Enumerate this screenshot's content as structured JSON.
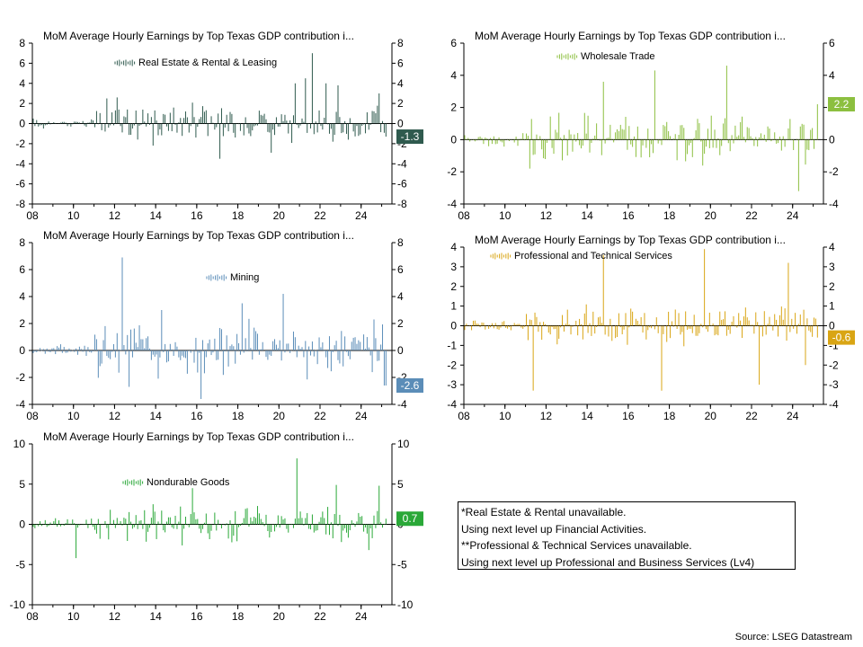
{
  "chart_data": [
    {
      "type": "bar",
      "title": "MoM Average Hourly Earnings by Top Texas GDP contribution i...",
      "series": [
        {
          "name": "Real Estate & Rental & Leasing",
          "color": "#2f5a4e",
          "latest": -1.3,
          "peaks": [
            [
              2011.6,
              2.5
            ],
            [
              2012.1,
              2.6
            ],
            [
              2012.5,
              -2.7
            ],
            [
              2017.1,
              -3.5
            ],
            [
              2019.6,
              -2.9
            ],
            [
              2020.8,
              4.0
            ],
            [
              2021.3,
              4.5
            ],
            [
              2021.6,
              7.0
            ],
            [
              2022.0,
              -6.3
            ],
            [
              2022.3,
              4.0
            ],
            [
              2022.9,
              3.8
            ],
            [
              2024.5,
              -3.3
            ],
            [
              2024.9,
              3.0
            ]
          ]
        }
      ],
      "xlim": [
        2008,
        2025.5
      ],
      "xticks": [
        "08",
        "10",
        "12",
        "14",
        "16",
        "18",
        "20",
        "22",
        "24"
      ],
      "ylim": [
        -8,
        8
      ],
      "yticks": [
        8,
        6,
        4,
        2,
        0,
        -2,
        -4,
        -6,
        -8
      ]
    },
    {
      "type": "bar",
      "title": "MoM Average Hourly Earnings by Top Texas GDP contribution i...",
      "series": [
        {
          "name": "Wholesale Trade",
          "color": "#8cbf3f",
          "latest": 2.2,
          "peaks": [
            [
              2011.5,
              4.3
            ],
            [
              2011.2,
              -1.8
            ],
            [
              2013.0,
              -3.4
            ],
            [
              2013.5,
              3.7
            ],
            [
              2014.8,
              3.6
            ],
            [
              2016.5,
              -3.0
            ],
            [
              2017.3,
              4.3
            ],
            [
              2018.5,
              3.8
            ],
            [
              2020.0,
              -4.0
            ],
            [
              2020.8,
              4.6
            ],
            [
              2023.5,
              3.5
            ],
            [
              2024.3,
              -3.2
            ],
            [
              2025.0,
              -1.5
            ]
          ]
        }
      ],
      "xlim": [
        2008,
        2025.5
      ],
      "xticks": [
        "08",
        "10",
        "12",
        "14",
        "16",
        "18",
        "20",
        "22",
        "24"
      ],
      "ylim": [
        -4,
        6
      ],
      "yticks": [
        6,
        4,
        2,
        0,
        -2,
        -4
      ]
    },
    {
      "type": "bar",
      "title": "MoM Average Hourly Earnings by Top Texas GDP contribution i...",
      "series": [
        {
          "name": "Mining",
          "color": "#5b8db8",
          "latest": -2.6,
          "peaks": [
            [
              2011.5,
              7.2
            ],
            [
              2012.4,
              6.9
            ],
            [
              2012.0,
              3.5
            ],
            [
              2012.7,
              -2.7
            ],
            [
              2014.3,
              3.0
            ],
            [
              2016.2,
              -3.6
            ],
            [
              2018.2,
              3.5
            ],
            [
              2020.2,
              4.2
            ],
            [
              2020.0,
              -3.2
            ],
            [
              2022.5,
              3.0
            ],
            [
              2024.6,
              2.3
            ],
            [
              2025.1,
              -2.6
            ]
          ]
        }
      ],
      "xlim": [
        2008,
        2025.5
      ],
      "xticks": [
        "08",
        "10",
        "12",
        "14",
        "16",
        "18",
        "20",
        "22",
        "24"
      ],
      "ylim": [
        -4,
        8
      ],
      "yticks": [
        8,
        6,
        4,
        2,
        0,
        -2,
        -4
      ]
    },
    {
      "type": "bar",
      "title": "MoM Average Hourly Earnings by Top Texas GDP contribution i...",
      "series": [
        {
          "name": "Professional and Technical Services",
          "color": "#d9a514",
          "latest": -0.6,
          "peaks": [
            [
              2011.4,
              -3.3
            ],
            [
              2013.0,
              3.2
            ],
            [
              2014.8,
              3.6
            ],
            [
              2016.5,
              3.2
            ],
            [
              2017.6,
              -3.3
            ],
            [
              2019.7,
              3.9
            ],
            [
              2021.0,
              3.6
            ],
            [
              2022.4,
              -3.0
            ],
            [
              2023.8,
              3.2
            ],
            [
              2024.6,
              -2.0
            ],
            [
              2025.0,
              3.3
            ]
          ]
        }
      ],
      "xlim": [
        2008,
        2025.5
      ],
      "xticks": [
        "08",
        "10",
        "12",
        "14",
        "16",
        "18",
        "20",
        "22",
        "24"
      ],
      "ylim": [
        -4,
        4
      ],
      "yticks": [
        4,
        3,
        2,
        1,
        0,
        -1,
        -2,
        -3,
        -4
      ]
    },
    {
      "type": "bar",
      "title": "MoM Average Hourly Earnings by Top Texas GDP contribution i...",
      "series": [
        {
          "name": "Nondurable Goods",
          "color": "#2aa838",
          "latest": 0.7,
          "peaks": [
            [
              2010.0,
              5.0
            ],
            [
              2010.1,
              -4.2
            ],
            [
              2015.8,
              4.5
            ],
            [
              2018.0,
              5.0
            ],
            [
              2020.5,
              -7.6
            ],
            [
              2020.9,
              8.2
            ],
            [
              2021.5,
              -3.5
            ],
            [
              2022.8,
              4.9
            ],
            [
              2023.5,
              4.5
            ],
            [
              2024.9,
              4.8
            ],
            [
              2024.4,
              -3.2
            ]
          ]
        }
      ],
      "xlim": [
        2008,
        2025.5
      ],
      "xticks": [
        "08",
        "10",
        "12",
        "14",
        "16",
        "18",
        "20",
        "22",
        "24"
      ],
      "ylim": [
        -10,
        10
      ],
      "yticks": [
        10,
        5,
        0,
        -5,
        -10
      ]
    }
  ],
  "notes": [
    "*Real Estate & Rental unavailable.",
    "Using next level up Financial Activities.",
    "**Professional & Technical Services unavailable.",
    "Using next level up Professional and Business Services (Lv4)"
  ],
  "source": "Source: LSEG Datastream"
}
